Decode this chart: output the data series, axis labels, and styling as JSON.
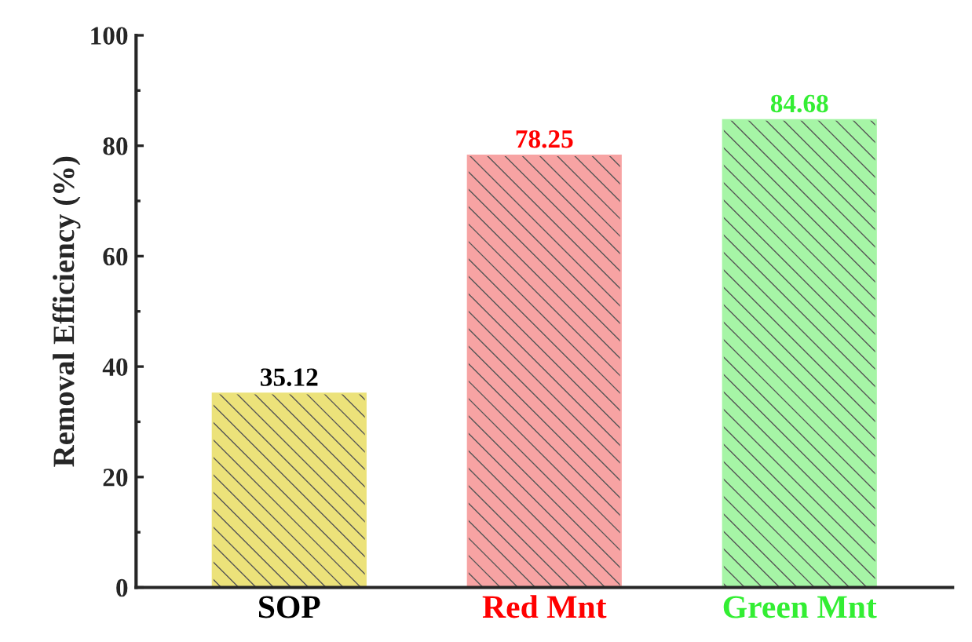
{
  "chart_data": {
    "type": "bar",
    "ylabel": "Removal Efficiency (%)",
    "categories": [
      "SOP",
      "Red Mnt",
      "Green Mnt"
    ],
    "values": [
      35.12,
      78.25,
      84.68
    ],
    "colors": [
      "#ece27a",
      "#f7a3a3",
      "#a6f5a6"
    ],
    "ylim": [
      0,
      100
    ],
    "yticks": [
      0,
      20,
      40,
      60,
      80,
      100
    ],
    "data_labels": true,
    "grid": false
  }
}
